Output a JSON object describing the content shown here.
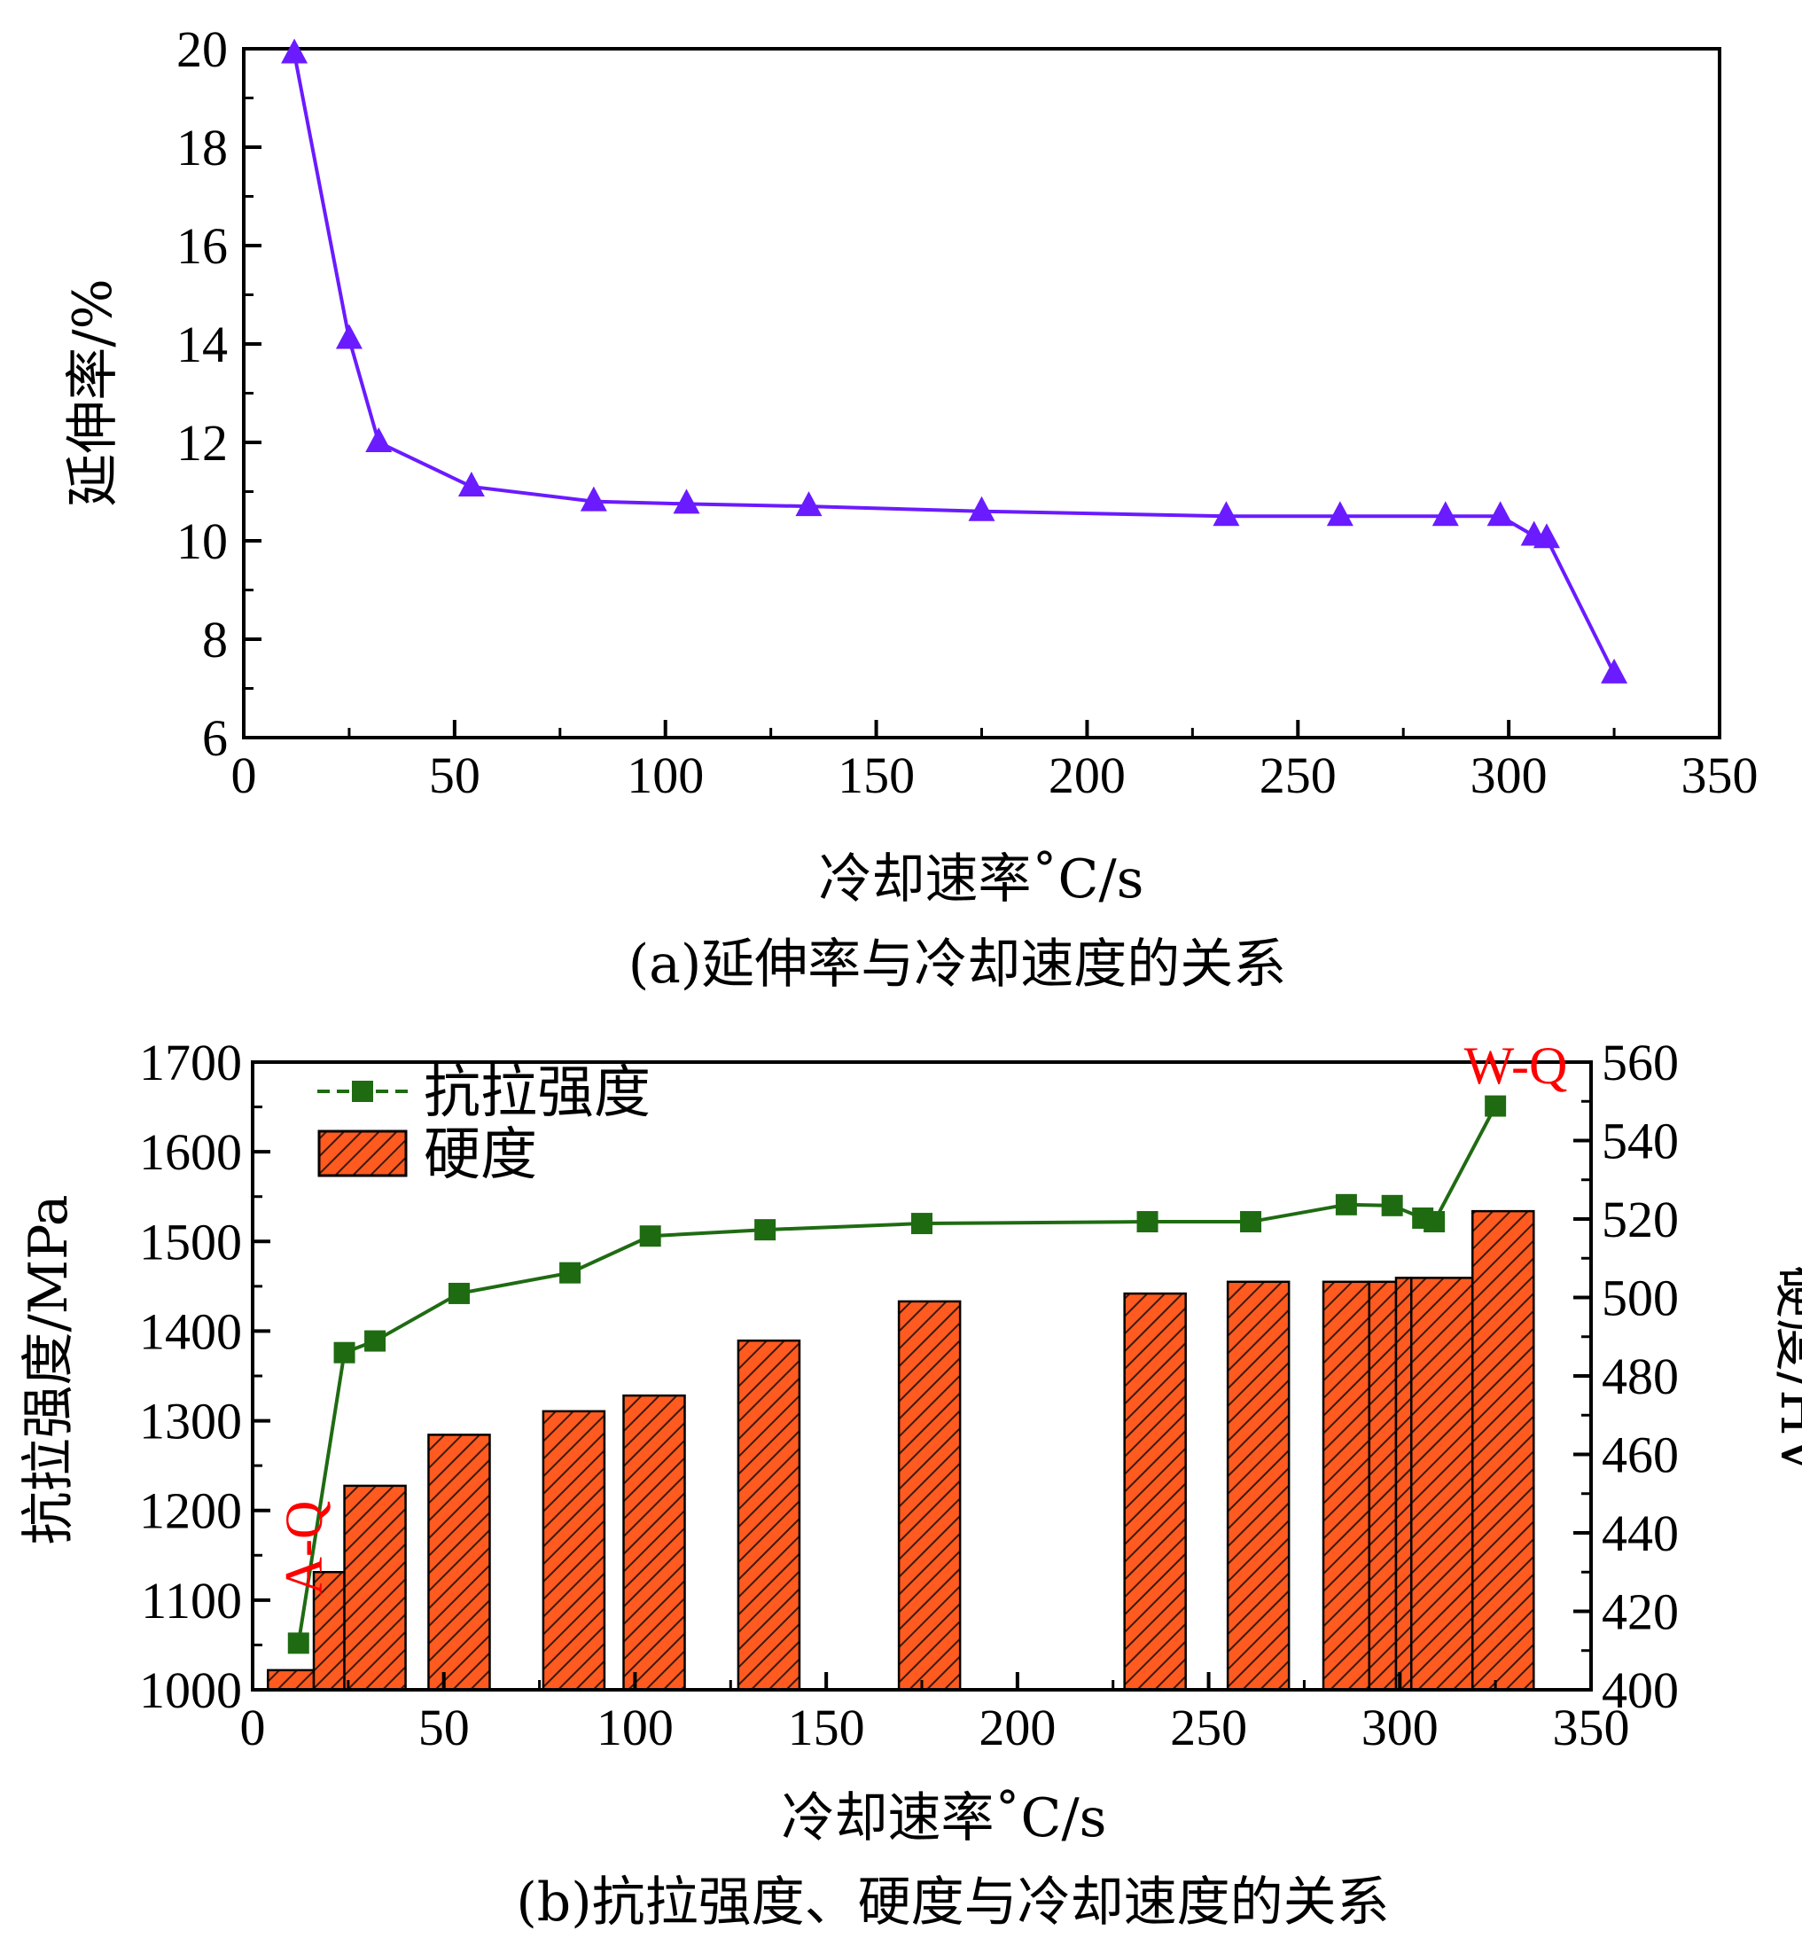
{
  "chart_data": [
    {
      "type": "line",
      "caption": "(a)延伸率与冷却速度的关系",
      "xlabel": "冷却速率˚C/s",
      "ylabel": "延伸率/%",
      "xlim": [
        0,
        350
      ],
      "ylim": [
        6,
        20
      ],
      "xticks": [
        0,
        50,
        100,
        150,
        200,
        250,
        300,
        350
      ],
      "yticks": [
        6,
        8,
        10,
        12,
        14,
        16,
        18,
        20
      ],
      "marker": "triangle",
      "line_color": "#6a1bff",
      "x": [
        12,
        25,
        32,
        54,
        83,
        105,
        134,
        175,
        233,
        260,
        285,
        298,
        306,
        309,
        325
      ],
      "y": [
        19.9,
        14.1,
        12.0,
        11.1,
        10.8,
        10.75,
        10.7,
        10.6,
        10.5,
        10.5,
        10.5,
        10.5,
        10.1,
        10.05,
        7.3
      ]
    },
    {
      "type": "bar+line",
      "caption": "(b)抗拉强度、硬度与冷却速度的关系",
      "xlabel": "冷却速率˚C/s",
      "ylabel_left": "抗拉强度/MPa",
      "ylabel_right": "硬度/HV",
      "xlim": [
        0,
        350
      ],
      "ylim_left": [
        1000,
        1700
      ],
      "ylim_right": [
        400,
        560
      ],
      "xticks": [
        0,
        50,
        100,
        150,
        200,
        250,
        300,
        350
      ],
      "yticks_left": [
        1000,
        1100,
        1200,
        1300,
        1400,
        1500,
        1600,
        1700
      ],
      "yticks_right": [
        400,
        420,
        440,
        460,
        480,
        500,
        520,
        540,
        560
      ],
      "legend": {
        "line_label": "抗拉强度",
        "bar_label": "硬度",
        "placement": "top-left"
      },
      "bar_color": "#ff5a1f",
      "line_color": "#1f6b12",
      "line_series": {
        "name": "抗拉强度",
        "x": [
          12,
          24,
          32,
          54,
          83,
          104,
          134,
          175,
          234,
          261,
          286,
          298,
          306,
          309,
          325
        ],
        "y": [
          1052,
          1376,
          1389,
          1442,
          1465,
          1506,
          1513,
          1520,
          1522,
          1522,
          1541,
          1540,
          1526,
          1522,
          1651
        ]
      },
      "bar_series": {
        "name": "硬度",
        "bars": [
          {
            "x_start": 4,
            "x_end": 16,
            "value": 405
          },
          {
            "x_start": 16,
            "x_end": 24,
            "value": 430
          },
          {
            "x_start": 24,
            "x_end": 40,
            "value": 452
          },
          {
            "x_start": 46,
            "x_end": 62,
            "value": 465
          },
          {
            "x_start": 76,
            "x_end": 92,
            "value": 471
          },
          {
            "x_start": 97,
            "x_end": 113,
            "value": 475
          },
          {
            "x_start": 127,
            "x_end": 143,
            "value": 489
          },
          {
            "x_start": 169,
            "x_end": 185,
            "value": 499
          },
          {
            "x_start": 228,
            "x_end": 244,
            "value": 501
          },
          {
            "x_start": 255,
            "x_end": 271,
            "value": 504
          },
          {
            "x_start": 280,
            "x_end": 292,
            "value": 504
          },
          {
            "x_start": 292,
            "x_end": 299,
            "value": 504
          },
          {
            "x_start": 299,
            "x_end": 303,
            "value": 505
          },
          {
            "x_start": 303,
            "x_end": 319,
            "value": 505
          },
          {
            "x_start": 319,
            "x_end": 335,
            "value": 522
          }
        ]
      },
      "annotations": [
        {
          "text": "A-Q",
          "color": "#ff0000"
        },
        {
          "text": "W-Q",
          "color": "#ff0000"
        }
      ]
    }
  ]
}
